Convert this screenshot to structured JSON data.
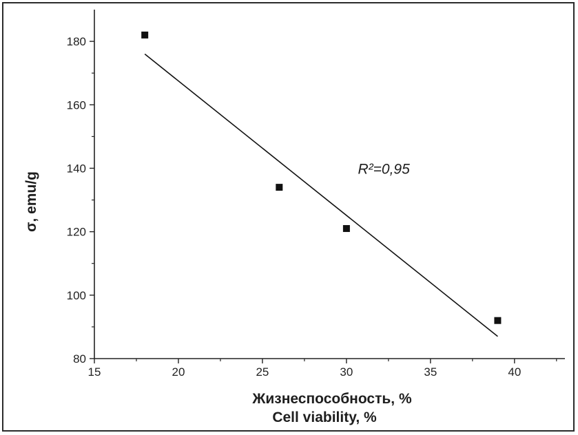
{
  "chart_data": {
    "type": "scatter",
    "xlabel": "Жизнеспособность, %",
    "xlabel_secondary": "Cell viability, %",
    "ylabel": "σ, emu/g",
    "xlim": [
      15,
      43
    ],
    "ylim": [
      80,
      190
    ],
    "xticks": [
      15,
      20,
      25,
      30,
      35,
      40
    ],
    "yticks": [
      80,
      100,
      120,
      140,
      160,
      180
    ],
    "grid": false,
    "series": [
      {
        "x": [
          18,
          26,
          30,
          39
        ],
        "y": [
          182,
          134,
          121,
          92
        ],
        "marker": "square",
        "color": "#111111"
      }
    ],
    "fit_line": {
      "x": [
        18,
        39
      ],
      "y": [
        176,
        87
      ],
      "color": "#111111"
    },
    "annotation": {
      "text": "R²=0,95",
      "x": 31.5,
      "y": 140
    }
  }
}
